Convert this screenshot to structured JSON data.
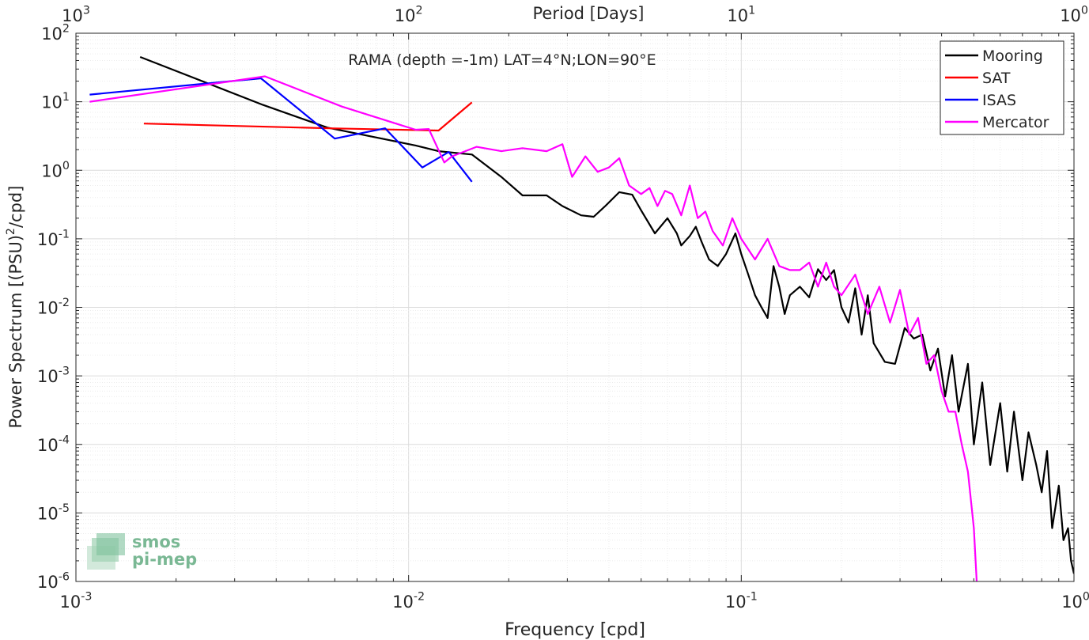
{
  "chart_data": {
    "type": "line",
    "title": "RAMA (depth =-1m) LAT=4°N;LON=90°E",
    "xlabel": "Frequency [cpd]",
    "ylabel": "Power Spectrum [(PSU)²/cpd]",
    "top_xlabel": "Period [Days]",
    "xscale": "log",
    "yscale": "log",
    "xlim": [
      0.001,
      1
    ],
    "ylim": [
      1e-06,
      100
    ],
    "grid": true,
    "legend_position": "top-right",
    "x_ticks": [
      {
        "v": 0.001,
        "base": "10",
        "exp": "-3"
      },
      {
        "v": 0.01,
        "base": "10",
        "exp": "-2"
      },
      {
        "v": 0.1,
        "base": "10",
        "exp": "-1"
      },
      {
        "v": 1,
        "base": "10",
        "exp": "0"
      }
    ],
    "top_ticks": [
      {
        "v": 0.001,
        "base": "10",
        "exp": "3"
      },
      {
        "v": 0.01,
        "base": "10",
        "exp": "2"
      },
      {
        "v": 0.1,
        "base": "10",
        "exp": "1"
      },
      {
        "v": 1,
        "base": "10",
        "exp": "0"
      }
    ],
    "y_ticks": [
      {
        "v": 100,
        "base": "10",
        "exp": "2"
      },
      {
        "v": 10,
        "base": "10",
        "exp": "1"
      },
      {
        "v": 1,
        "base": "10",
        "exp": "0"
      },
      {
        "v": 0.1,
        "base": "10",
        "exp": "-1"
      },
      {
        "v": 0.01,
        "base": "10",
        "exp": "-2"
      },
      {
        "v": 0.001,
        "base": "10",
        "exp": "-3"
      },
      {
        "v": 0.0001,
        "base": "10",
        "exp": "-4"
      },
      {
        "v": 1e-05,
        "base": "10",
        "exp": "-5"
      },
      {
        "v": 1e-06,
        "base": "10",
        "exp": "-6"
      }
    ],
    "series": [
      {
        "name": "Mooring",
        "color": "#000000",
        "points": [
          [
            0.00156,
            45
          ],
          [
            0.00365,
            9
          ],
          [
            0.0057,
            4.2
          ],
          [
            0.0105,
            2.3
          ],
          [
            0.0123,
            1.9
          ],
          [
            0.0155,
            1.7
          ],
          [
            0.019,
            0.8
          ],
          [
            0.022,
            0.43
          ],
          [
            0.026,
            0.43
          ],
          [
            0.029,
            0.3
          ],
          [
            0.033,
            0.22
          ],
          [
            0.036,
            0.21
          ],
          [
            0.039,
            0.3
          ],
          [
            0.043,
            0.48
          ],
          [
            0.047,
            0.44
          ],
          [
            0.05,
            0.26
          ],
          [
            0.055,
            0.12
          ],
          [
            0.06,
            0.2
          ],
          [
            0.064,
            0.12
          ],
          [
            0.066,
            0.08
          ],
          [
            0.07,
            0.11
          ],
          [
            0.073,
            0.15
          ],
          [
            0.076,
            0.09
          ],
          [
            0.08,
            0.05
          ],
          [
            0.085,
            0.04
          ],
          [
            0.09,
            0.06
          ],
          [
            0.096,
            0.12
          ],
          [
            0.1,
            0.06
          ],
          [
            0.105,
            0.03
          ],
          [
            0.11,
            0.015
          ],
          [
            0.115,
            0.01
          ],
          [
            0.12,
            0.007
          ],
          [
            0.125,
            0.04
          ],
          [
            0.13,
            0.02
          ],
          [
            0.135,
            0.008
          ],
          [
            0.14,
            0.015
          ],
          [
            0.15,
            0.02
          ],
          [
            0.16,
            0.014
          ],
          [
            0.17,
            0.036
          ],
          [
            0.18,
            0.025
          ],
          [
            0.19,
            0.035
          ],
          [
            0.2,
            0.01
          ],
          [
            0.21,
            0.006
          ],
          [
            0.22,
            0.019
          ],
          [
            0.23,
            0.004
          ],
          [
            0.24,
            0.015
          ],
          [
            0.25,
            0.003
          ],
          [
            0.27,
            0.0016
          ],
          [
            0.29,
            0.0015
          ],
          [
            0.31,
            0.005
          ],
          [
            0.33,
            0.0035
          ],
          [
            0.35,
            0.004
          ],
          [
            0.37,
            0.0012
          ],
          [
            0.39,
            0.0025
          ],
          [
            0.41,
            0.0005
          ],
          [
            0.43,
            0.002
          ],
          [
            0.45,
            0.0003
          ],
          [
            0.48,
            0.0015
          ],
          [
            0.5,
            0.0001
          ],
          [
            0.53,
            0.0008
          ],
          [
            0.56,
            5e-05
          ],
          [
            0.6,
            0.0004
          ],
          [
            0.63,
            4e-05
          ],
          [
            0.66,
            0.0003
          ],
          [
            0.7,
            3e-05
          ],
          [
            0.73,
            0.00015
          ],
          [
            0.77,
            5e-05
          ],
          [
            0.8,
            2e-05
          ],
          [
            0.83,
            8e-05
          ],
          [
            0.86,
            6e-06
          ],
          [
            0.9,
            2.5e-05
          ],
          [
            0.93,
            4e-06
          ],
          [
            0.96,
            6e-06
          ],
          [
            0.98,
            2e-06
          ],
          [
            1.0,
            1.3e-06
          ]
        ]
      },
      {
        "name": "SAT",
        "color": "#ff0000",
        "points": [
          [
            0.0016,
            4.8
          ],
          [
            0.0058,
            4.1
          ],
          [
            0.0123,
            3.8
          ],
          [
            0.0155,
            9.8
          ]
        ]
      },
      {
        "name": "ISAS",
        "color": "#0000ff",
        "points": [
          [
            0.0011,
            12.7
          ],
          [
            0.0036,
            22
          ],
          [
            0.006,
            2.9
          ],
          [
            0.0085,
            4.1
          ],
          [
            0.011,
            1.1
          ],
          [
            0.0132,
            1.85
          ],
          [
            0.0155,
            0.68
          ]
        ]
      },
      {
        "name": "Mercator",
        "color": "#ff00ff",
        "points": [
          [
            0.0011,
            10
          ],
          [
            0.0037,
            23.5
          ],
          [
            0.0063,
            8.5
          ],
          [
            0.0105,
            3.9
          ],
          [
            0.0115,
            4.0
          ],
          [
            0.0128,
            1.3
          ],
          [
            0.0135,
            1.6
          ],
          [
            0.016,
            2.2
          ],
          [
            0.019,
            1.9
          ],
          [
            0.022,
            2.1
          ],
          [
            0.026,
            1.9
          ],
          [
            0.029,
            2.4
          ],
          [
            0.031,
            0.8
          ],
          [
            0.034,
            1.6
          ],
          [
            0.037,
            0.95
          ],
          [
            0.04,
            1.1
          ],
          [
            0.043,
            1.5
          ],
          [
            0.046,
            0.6
          ],
          [
            0.05,
            0.45
          ],
          [
            0.053,
            0.55
          ],
          [
            0.056,
            0.3
          ],
          [
            0.059,
            0.5
          ],
          [
            0.062,
            0.45
          ],
          [
            0.066,
            0.22
          ],
          [
            0.07,
            0.6
          ],
          [
            0.074,
            0.2
          ],
          [
            0.078,
            0.25
          ],
          [
            0.082,
            0.13
          ],
          [
            0.088,
            0.08
          ],
          [
            0.094,
            0.2
          ],
          [
            0.1,
            0.1
          ],
          [
            0.11,
            0.05
          ],
          [
            0.12,
            0.1
          ],
          [
            0.13,
            0.04
          ],
          [
            0.14,
            0.035
          ],
          [
            0.15,
            0.035
          ],
          [
            0.16,
            0.045
          ],
          [
            0.17,
            0.02
          ],
          [
            0.18,
            0.045
          ],
          [
            0.19,
            0.02
          ],
          [
            0.2,
            0.015
          ],
          [
            0.22,
            0.03
          ],
          [
            0.24,
            0.008
          ],
          [
            0.26,
            0.02
          ],
          [
            0.28,
            0.006
          ],
          [
            0.3,
            0.018
          ],
          [
            0.32,
            0.004
          ],
          [
            0.34,
            0.007
          ],
          [
            0.36,
            0.0015
          ],
          [
            0.38,
            0.002
          ],
          [
            0.4,
            0.0006
          ],
          [
            0.42,
            0.0003
          ],
          [
            0.44,
            0.0003
          ],
          [
            0.46,
            0.0001
          ],
          [
            0.48,
            4e-05
          ],
          [
            0.5,
            6e-06
          ],
          [
            0.51,
            1e-06
          ]
        ]
      }
    ]
  },
  "watermark": {
    "line1": "smos",
    "line2": "pi-mep"
  }
}
